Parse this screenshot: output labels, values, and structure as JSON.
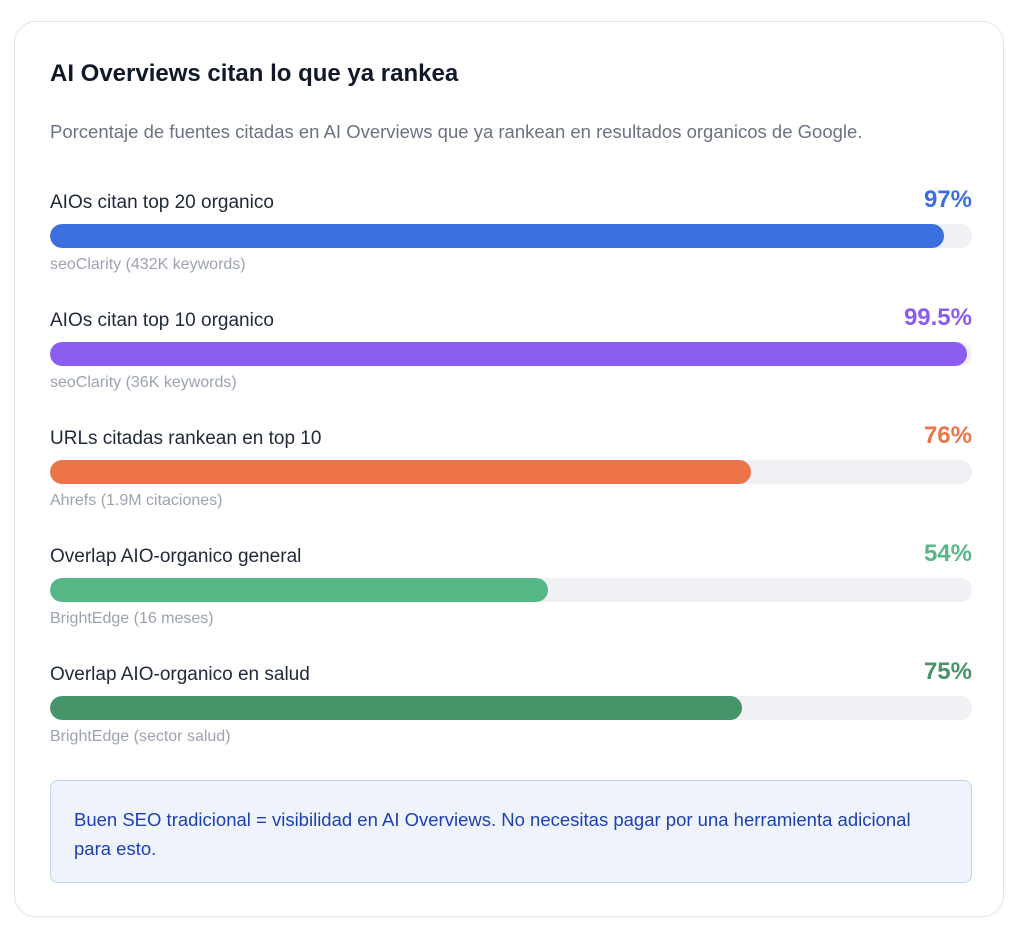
{
  "card": {
    "title": "AI Overviews citan lo que ya rankea",
    "subtitle": "Porcentaje de fuentes citadas en AI Overviews que ya rankean en resultados organicos de Google."
  },
  "chart_data": {
    "type": "bar",
    "orientation": "horizontal",
    "title": "AI Overviews citan lo que ya rankea",
    "unit": "%",
    "xlim": [
      0,
      100
    ],
    "categories": [
      "AIOs citan top 20 organico",
      "AIOs citan top 10 organico",
      "URLs citadas rankean en top 10",
      "Overlap AIO-organico general",
      "Overlap AIO-organico en salud"
    ],
    "values": [
      97,
      99.5,
      76,
      54,
      75
    ],
    "items": [
      {
        "label": "AIOs citan top 20 organico",
        "value": 97,
        "value_label": "97%",
        "source": "seoClarity (432K keywords)",
        "color": "#3b6fe0"
      },
      {
        "label": "AIOs citan top 10 organico",
        "value": 99.5,
        "value_label": "99.5%",
        "source": "seoClarity (36K keywords)",
        "color": "#8a5cf0"
      },
      {
        "label": "URLs citadas rankean en top 10",
        "value": 76,
        "value_label": "76%",
        "source": "Ahrefs (1.9M citaciones)",
        "color": "#ec7448"
      },
      {
        "label": "Overlap AIO-organico general",
        "value": 54,
        "value_label": "54%",
        "source": "BrightEdge (16 meses)",
        "color": "#58b786"
      },
      {
        "label": "Overlap AIO-organico en salud",
        "value": 75,
        "value_label": "75%",
        "source": "BrightEdge (sector salud)",
        "color": "#45946a"
      }
    ]
  },
  "note": {
    "text": "Buen SEO tradicional = visibilidad en AI Overviews. No necesitas pagar por una herramienta adicional para esto."
  }
}
